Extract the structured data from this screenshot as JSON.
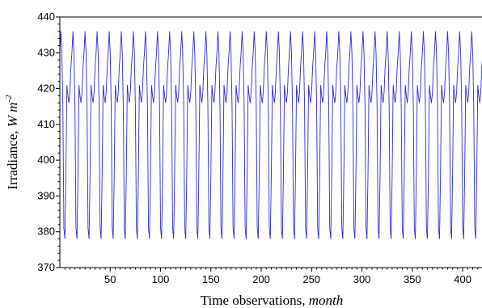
{
  "chart_data": {
    "type": "line",
    "xlabel": {
      "text": "Time observations, ",
      "unit": "month"
    },
    "ylabel": {
      "text": "Irradiance, ",
      "unit_base": "W m",
      "unit_exp": "-2"
    },
    "xlim": [
      0,
      420
    ],
    "ylim": [
      370,
      440
    ],
    "x_ticks": [
      50,
      100,
      150,
      200,
      250,
      300,
      350,
      400
    ],
    "y_ticks": [
      370,
      380,
      390,
      400,
      410,
      420,
      430,
      440
    ],
    "grid": false,
    "series": [
      {
        "color": "#2b2bd6",
        "pattern": [
          430,
          436,
          430,
          415,
          381,
          378,
          396,
          421,
          418,
          416,
          419,
          426
        ],
        "months": 420
      }
    ]
  }
}
